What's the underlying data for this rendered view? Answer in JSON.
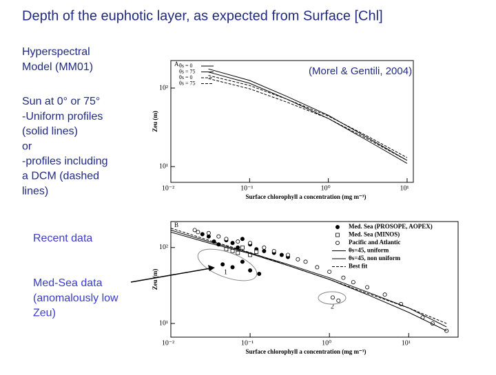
{
  "slide": {
    "title": "Depth of the euphotic layer, as expected from Surface [Chl]",
    "model_note": [
      "Hyperspectral",
      "Model (MM01)"
    ],
    "sun_note": [
      "Sun at 0° or 75°",
      "-Uniform profiles",
      "(solid lines)",
      "or",
      "-profiles including",
      " a DCM (dashed",
      "lines)"
    ],
    "recent_note": [
      "Recent data"
    ],
    "medsea_note": [
      "Med-Sea data",
      "(anomalously low",
      "Zeu)"
    ],
    "citation": "(Morel & Gentili, 2004)"
  },
  "chart_data": [
    {
      "type": "line",
      "panel": "A",
      "x_label": "Surface chlorophyll a concentration (mg m⁻³)",
      "y_label": "Zeu (m)",
      "log_x": true,
      "log_y": true,
      "xlim": [
        0.01,
        12
      ],
      "ylim": [
        6.3,
        224
      ],
      "xticks": [
        {
          "value": 0.01,
          "label": "10⁻²"
        },
        {
          "value": 0.1,
          "label": "10⁻¹"
        },
        {
          "value": 1,
          "label": "10⁰"
        },
        {
          "value": 10,
          "label": "10¹"
        }
      ],
      "yticks": [
        {
          "value": 10,
          "label": "10¹"
        },
        {
          "value": 100,
          "label": "10²"
        }
      ],
      "legend": "upper left",
      "x": [
        0.03,
        0.1,
        0.3,
        1,
        3,
        10
      ],
      "series": [
        {
          "name": "θs = 0",
          "color": "#000000",
          "dash": "none",
          "values": [
            175,
            125,
            78,
            45,
            24,
            12
          ]
        },
        {
          "name": "θs = 75",
          "color": "#000000",
          "dash": "none",
          "values": [
            160,
            115,
            72,
            41,
            22,
            11
          ]
        },
        {
          "name": "θs = 0",
          "color": "#000000",
          "dash": "dash",
          "values": [
            145,
            108,
            72,
            44,
            25,
            13
          ]
        },
        {
          "name": "θs = 75",
          "color": "#000000",
          "dash": "dash",
          "values": [
            132,
            98,
            66,
            41,
            23,
            12
          ]
        }
      ]
    },
    {
      "type": "scatter",
      "panel": "B",
      "x_label": "Surface chlorophyll a concentration (mg m⁻³)",
      "y_label": "Zeu (m)",
      "log_x": true,
      "log_y": true,
      "xlim": [
        0.01,
        42
      ],
      "ylim": [
        6.6,
        220
      ],
      "xticks": [
        {
          "value": 0.01,
          "label": "10⁻²"
        },
        {
          "value": 0.1,
          "label": "10⁻¹"
        },
        {
          "value": 1,
          "label": "10⁰"
        },
        {
          "value": 10,
          "label": "10¹"
        }
      ],
      "yticks": [
        {
          "value": 10,
          "label": "10¹"
        },
        {
          "value": 100,
          "label": "10²"
        }
      ],
      "legend": "upper right",
      "annotations": [
        "1",
        "2"
      ],
      "series": [
        {
          "name": "Med. Sea (PROSOPE, AOPEX)",
          "color": "#000000",
          "marker": "filled-circle",
          "x": [
            0.025,
            0.03,
            0.035,
            0.04,
            0.05,
            0.06,
            0.07,
            0.08,
            0.1,
            0.12,
            0.15,
            0.2,
            0.25,
            0.3,
            0.045,
            0.06,
            0.08,
            0.1,
            0.13
          ],
          "values": [
            150,
            140,
            120,
            110,
            125,
            115,
            100,
            130,
            110,
            95,
            90,
            85,
            80,
            75,
            60,
            55,
            65,
            50,
            45
          ]
        },
        {
          "name": "Med. Sea (MINOS)",
          "color": "#000000",
          "marker": "square",
          "x": [
            0.05,
            0.06,
            0.07,
            0.08,
            0.1,
            0.12
          ],
          "values": [
            95,
            90,
            85,
            100,
            80,
            88
          ]
        },
        {
          "name": "Pacific and Atlantic",
          "color": "#000000",
          "marker": "open-circle",
          "x": [
            0.02,
            0.022,
            0.03,
            0.04,
            0.05,
            0.07,
            0.1,
            0.15,
            0.2,
            0.3,
            0.4,
            0.5,
            0.7,
            1,
            1.5,
            2,
            3,
            5,
            8,
            15,
            20,
            30,
            1.1,
            1.3
          ],
          "values": [
            170,
            160,
            155,
            140,
            130,
            120,
            115,
            100,
            90,
            80,
            70,
            65,
            55,
            48,
            40,
            35,
            30,
            24,
            18,
            12,
            10,
            8,
            22,
            20
          ]
        },
        {
          "name": "θs=45, uniform",
          "color": "#000000",
          "line": true,
          "dash": "none",
          "x": [
            0.01,
            0.03,
            0.1,
            0.3,
            1,
            3,
            10,
            30
          ],
          "values": [
            170,
            120,
            85,
            60,
            40,
            26,
            16,
            9
          ]
        },
        {
          "name": "θs=45, non uniform",
          "color": "#000000",
          "line": true,
          "dash": "none",
          "x": [
            0.01,
            0.03,
            0.1,
            0.3,
            1,
            3,
            10,
            30
          ],
          "values": [
            160,
            115,
            83,
            58,
            38,
            24,
            14,
            8
          ]
        },
        {
          "name": "Best fit",
          "color": "#000000",
          "line": true,
          "dash": "dash",
          "x": [
            0.01,
            0.03,
            0.1,
            0.3,
            1,
            3,
            10,
            30
          ],
          "values": [
            180,
            125,
            86,
            58,
            38,
            25,
            16,
            10
          ]
        }
      ]
    }
  ]
}
